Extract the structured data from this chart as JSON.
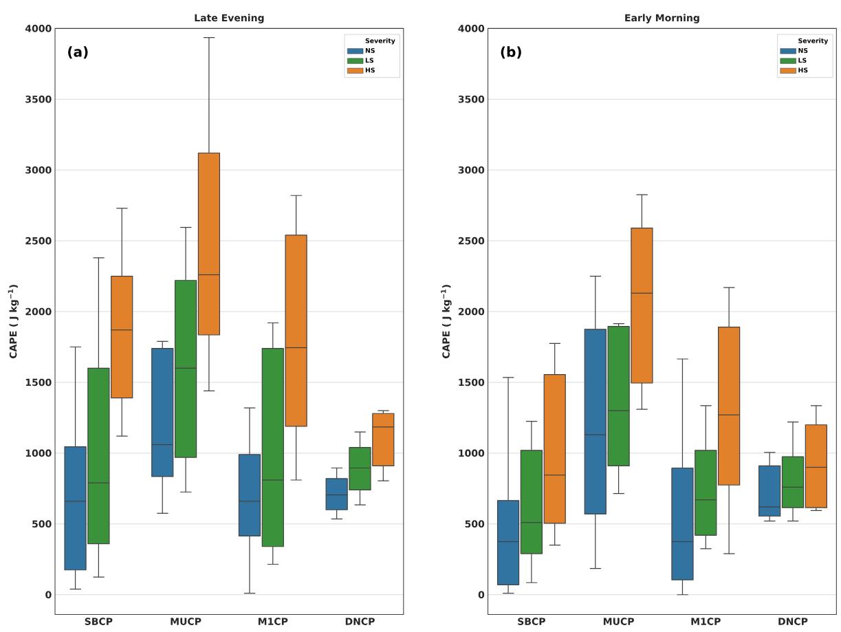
{
  "chart_data": [
    {
      "type": "box",
      "title": "Late Evening",
      "ylabel": "CAPE ( J kg$^{−1}$)",
      "categories": [
        "SBCP",
        "MUCP",
        "M1CP",
        "DNCP"
      ],
      "ylim": [
        -140,
        4000
      ],
      "yticks": [
        0,
        500,
        1000,
        1500,
        2000,
        2500,
        3000,
        3500,
        4000
      ],
      "grid": "y",
      "legend": "top right",
      "legend_title": "Severity",
      "annotations": [
        "(a)"
      ],
      "series": [
        {
          "name": "NS",
          "color": "#3274a1",
          "boxes": [
            {
              "low": 40,
              "q1": 175,
              "median": 660,
              "q3": 1045,
              "high": 1750
            },
            {
              "low": 575,
              "q1": 835,
              "median": 1060,
              "q3": 1740,
              "high": 1790
            },
            {
              "low": 10,
              "q1": 415,
              "median": 660,
              "q3": 990,
              "high": 1320
            },
            {
              "low": 535,
              "q1": 600,
              "median": 705,
              "q3": 820,
              "high": 895
            }
          ]
        },
        {
          "name": "LS",
          "color": "#3a923a",
          "boxes": [
            {
              "low": 125,
              "q1": 360,
              "median": 790,
              "q3": 1600,
              "high": 2380
            },
            {
              "low": 725,
              "q1": 970,
              "median": 1600,
              "q3": 2220,
              "high": 2595
            },
            {
              "low": 215,
              "q1": 340,
              "median": 810,
              "q3": 1740,
              "high": 1920
            },
            {
              "low": 635,
              "q1": 740,
              "median": 895,
              "q3": 1040,
              "high": 1150
            }
          ]
        },
        {
          "name": "HS",
          "color": "#e1812c",
          "boxes": [
            {
              "low": 1120,
              "q1": 1390,
              "median": 1870,
              "q3": 2250,
              "high": 2730
            },
            {
              "low": 1440,
              "q1": 1835,
              "median": 2260,
              "q3": 3120,
              "high": 3935
            },
            {
              "low": 810,
              "q1": 1190,
              "median": 1745,
              "q3": 2540,
              "high": 2820
            },
            {
              "low": 805,
              "q1": 910,
              "median": 1185,
              "q3": 1280,
              "high": 1300
            }
          ]
        }
      ]
    },
    {
      "type": "box",
      "title": "Early Morning",
      "ylabel": "CAPE ( J kg$^{−1}$)",
      "categories": [
        "SBCP",
        "MUCP",
        "M1CP",
        "DNCP"
      ],
      "ylim": [
        -140,
        4000
      ],
      "yticks": [
        0,
        500,
        1000,
        1500,
        2000,
        2500,
        3000,
        3500,
        4000
      ],
      "grid": "y",
      "legend": "top right",
      "legend_title": "Severity",
      "annotations": [
        "(b)"
      ],
      "series": [
        {
          "name": "NS",
          "color": "#3274a1",
          "boxes": [
            {
              "low": 10,
              "q1": 70,
              "median": 375,
              "q3": 665,
              "high": 1535
            },
            {
              "low": 185,
              "q1": 570,
              "median": 1130,
              "q3": 1875,
              "high": 2250
            },
            {
              "low": 0,
              "q1": 105,
              "median": 375,
              "q3": 895,
              "high": 1665
            },
            {
              "low": 520,
              "q1": 555,
              "median": 620,
              "q3": 910,
              "high": 1005
            }
          ]
        },
        {
          "name": "LS",
          "color": "#3a923a",
          "boxes": [
            {
              "low": 85,
              "q1": 290,
              "median": 510,
              "q3": 1020,
              "high": 1225
            },
            {
              "low": 715,
              "q1": 910,
              "median": 1300,
              "q3": 1895,
              "high": 1915
            },
            {
              "low": 325,
              "q1": 420,
              "median": 670,
              "q3": 1020,
              "high": 1335
            },
            {
              "low": 520,
              "q1": 615,
              "median": 760,
              "q3": 975,
              "high": 1220
            }
          ]
        },
        {
          "name": "HS",
          "color": "#e1812c",
          "boxes": [
            {
              "low": 350,
              "q1": 505,
              "median": 845,
              "q3": 1555,
              "high": 1775
            },
            {
              "low": 1310,
              "q1": 1495,
              "median": 2130,
              "q3": 2590,
              "high": 2825
            },
            {
              "low": 290,
              "q1": 775,
              "median": 1270,
              "q3": 1890,
              "high": 2170
            },
            {
              "low": 595,
              "q1": 615,
              "median": 900,
              "q3": 1200,
              "high": 1335
            }
          ]
        }
      ]
    }
  ]
}
